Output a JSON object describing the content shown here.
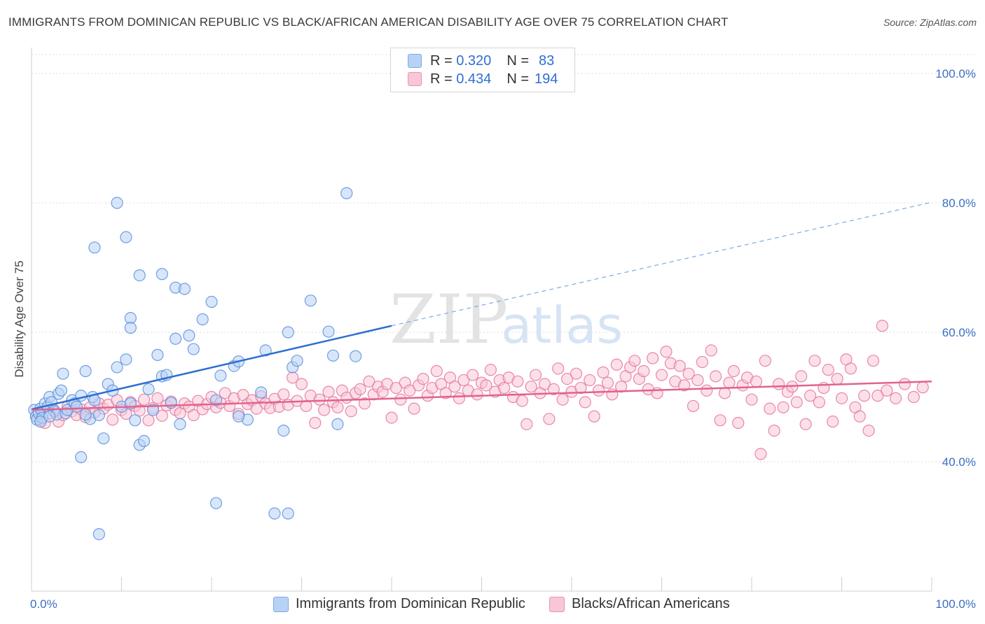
{
  "title": "IMMIGRANTS FROM DOMINICAN REPUBLIC VS BLACK/AFRICAN AMERICAN DISABILITY AGE OVER 75 CORRELATION CHART",
  "source": "Source: ZipAtlas.com",
  "watermark": {
    "zip": "ZIP",
    "atlas": "atlas"
  },
  "legend": {
    "r_label": "R =",
    "n_label": "N =",
    "rows": [
      {
        "r": "0.320",
        "n": "83",
        "color": "#7aaae8",
        "fill": "#b8d2f5"
      },
      {
        "r": "0.434",
        "n": "194",
        "color": "#ee8fb0",
        "fill": "#f8c6d6"
      }
    ]
  },
  "bottom_legend": [
    "Immigrants from Dominican Republic",
    "Blacks/African Americans"
  ],
  "chart_data": {
    "type": "scatter",
    "title": "IMMIGRANTS FROM DOMINICAN REPUBLIC VS BLACK/AFRICAN AMERICAN DISABILITY AGE OVER 75 CORRELATION CHART",
    "xlabel": "",
    "ylabel": "Disability Age Over 75",
    "xlim": [
      0,
      100
    ],
    "ylim": [
      20,
      104
    ],
    "x_tick_labels": [
      "0.0%",
      "100.0%"
    ],
    "y_ticks": [
      40,
      60,
      80,
      100
    ],
    "y_tick_labels": [
      "40.0%",
      "60.0%",
      "80.0%",
      "100.0%"
    ],
    "grid": true,
    "legend_position": "top-center",
    "series": [
      {
        "name": "Immigrants from Dominican Republic",
        "color": "#5b8fdc",
        "fill": "#b8d2f5",
        "trend": {
          "x0": 0,
          "y0": 48.1,
          "x1": 40,
          "y1": 61.0,
          "dashed_to_x": 100,
          "dashed_to_y": 80.1
        },
        "points": [
          [
            0.3,
            48.0
          ],
          [
            0.5,
            47.0
          ],
          [
            0.6,
            46.5
          ],
          [
            0.8,
            47.5
          ],
          [
            1.0,
            48.2
          ],
          [
            1.2,
            46.8
          ],
          [
            1.5,
            49.0
          ],
          [
            1.8,
            48.5
          ],
          [
            2.0,
            50.0
          ],
          [
            2.2,
            49.2
          ],
          [
            2.5,
            47.8
          ],
          [
            2.8,
            47.3
          ],
          [
            3.0,
            50.5
          ],
          [
            3.3,
            51.0
          ],
          [
            3.5,
            53.6
          ],
          [
            3.8,
            47.5
          ],
          [
            4.0,
            48.0
          ],
          [
            4.5,
            49.5
          ],
          [
            4.8,
            49.0
          ],
          [
            5.0,
            48.5
          ],
          [
            5.5,
            50.2
          ],
          [
            6.0,
            54.0
          ],
          [
            6.5,
            46.6
          ],
          [
            6.8,
            50.0
          ],
          [
            7.0,
            49.5
          ],
          [
            7.5,
            47.2
          ],
          [
            8.0,
            43.6
          ],
          [
            8.5,
            52.0
          ],
          [
            9.0,
            51.0
          ],
          [
            9.5,
            54.6
          ],
          [
            10.0,
            48.5
          ],
          [
            10.5,
            55.8
          ],
          [
            11.0,
            49.0
          ],
          [
            11.5,
            46.4
          ],
          [
            12.0,
            42.6
          ],
          [
            12.5,
            43.2
          ],
          [
            13.0,
            51.2
          ],
          [
            13.5,
            48.0
          ],
          [
            14.0,
            56.5
          ],
          [
            14.5,
            53.2
          ],
          [
            15.0,
            53.4
          ],
          [
            15.5,
            49.1
          ],
          [
            16.0,
            59.0
          ],
          [
            16.5,
            45.8
          ],
          [
            17.5,
            59.5
          ],
          [
            18.0,
            57.4
          ],
          [
            19.0,
            62.0
          ],
          [
            20.0,
            64.7
          ],
          [
            20.5,
            49.5
          ],
          [
            21.0,
            53.3
          ],
          [
            22.5,
            54.8
          ],
          [
            23.0,
            55.5
          ],
          [
            24.0,
            46.5
          ],
          [
            25.5,
            50.7
          ],
          [
            26.0,
            57.2
          ],
          [
            28.0,
            44.8
          ],
          [
            28.5,
            60.0
          ],
          [
            29.0,
            54.6
          ],
          [
            29.5,
            55.6
          ],
          [
            31.0,
            64.9
          ],
          [
            33.0,
            60.1
          ],
          [
            33.5,
            56.4
          ],
          [
            34.0,
            45.8
          ],
          [
            36.0,
            56.3
          ],
          [
            7.0,
            73.1
          ],
          [
            9.5,
            80.0
          ],
          [
            10.5,
            74.7
          ],
          [
            12.0,
            68.8
          ],
          [
            14.5,
            69.0
          ],
          [
            16.0,
            66.9
          ],
          [
            17.0,
            66.7
          ],
          [
            11.0,
            62.2
          ],
          [
            11.0,
            60.7
          ],
          [
            5.5,
            40.7
          ],
          [
            7.5,
            28.8
          ],
          [
            20.5,
            33.6
          ],
          [
            27.0,
            32.0
          ],
          [
            28.5,
            32.0
          ],
          [
            35.0,
            81.5
          ],
          [
            23.0,
            47.0
          ],
          [
            1.0,
            46.2
          ],
          [
            2.0,
            47.0
          ],
          [
            6.0,
            47.3
          ]
        ]
      },
      {
        "name": "Blacks/African Americans",
        "color": "#e6739c",
        "fill": "#f8c6d6",
        "trend": {
          "x0": 0,
          "y0": 48.0,
          "x1": 100,
          "y1": 52.4
        },
        "points": [
          [
            0.5,
            47.0
          ],
          [
            1.0,
            46.5
          ],
          [
            1.5,
            46.0
          ],
          [
            2.0,
            47.5
          ],
          [
            2.5,
            48.0
          ],
          [
            3.0,
            46.2
          ],
          [
            3.5,
            47.2
          ],
          [
            4.0,
            48.5
          ],
          [
            4.5,
            47.8
          ],
          [
            5.0,
            47.2
          ],
          [
            5.5,
            48.1
          ],
          [
            6.0,
            46.9
          ],
          [
            6.5,
            48.4
          ],
          [
            7.0,
            47.6
          ],
          [
            7.5,
            49.0
          ],
          [
            8.0,
            48.2
          ],
          [
            8.5,
            48.8
          ],
          [
            9.0,
            46.5
          ],
          [
            9.5,
            49.5
          ],
          [
            10.0,
            48.0
          ],
          [
            10.5,
            47.4
          ],
          [
            11.0,
            49.2
          ],
          [
            11.5,
            48.6
          ],
          [
            12.0,
            47.9
          ],
          [
            12.5,
            49.6
          ],
          [
            13.0,
            46.4
          ],
          [
            13.5,
            48.3
          ],
          [
            14.0,
            49.8
          ],
          [
            14.5,
            47.1
          ],
          [
            15.0,
            48.7
          ],
          [
            15.5,
            49.3
          ],
          [
            16.0,
            48.0
          ],
          [
            16.5,
            47.5
          ],
          [
            17.0,
            49.0
          ],
          [
            17.5,
            48.5
          ],
          [
            18.0,
            47.2
          ],
          [
            18.5,
            49.4
          ],
          [
            19.0,
            48.1
          ],
          [
            19.5,
            48.9
          ],
          [
            20.0,
            50.0
          ],
          [
            20.5,
            48.4
          ],
          [
            21.0,
            49.1
          ],
          [
            21.5,
            50.6
          ],
          [
            22.0,
            48.6
          ],
          [
            22.5,
            49.8
          ],
          [
            23.0,
            47.4
          ],
          [
            23.5,
            50.3
          ],
          [
            24.0,
            48.9
          ],
          [
            24.5,
            49.5
          ],
          [
            25.0,
            48.2
          ],
          [
            25.5,
            50.1
          ],
          [
            26.0,
            49.0
          ],
          [
            26.5,
            48.3
          ],
          [
            27.0,
            49.7
          ],
          [
            27.5,
            48.5
          ],
          [
            28.0,
            50.4
          ],
          [
            28.5,
            48.8
          ],
          [
            29.0,
            53.0
          ],
          [
            29.5,
            49.4
          ],
          [
            30.0,
            52.0
          ],
          [
            30.5,
            48.6
          ],
          [
            31.0,
            50.2
          ],
          [
            31.5,
            46.0
          ],
          [
            32.0,
            49.6
          ],
          [
            32.5,
            48.0
          ],
          [
            33.0,
            50.8
          ],
          [
            33.5,
            49.2
          ],
          [
            34.0,
            48.4
          ],
          [
            34.5,
            51.0
          ],
          [
            35.0,
            49.9
          ],
          [
            35.5,
            47.8
          ],
          [
            36.0,
            50.6
          ],
          [
            36.5,
            51.2
          ],
          [
            37.0,
            49.0
          ],
          [
            37.5,
            52.4
          ],
          [
            38.0,
            50.4
          ],
          [
            38.5,
            51.6
          ],
          [
            39.0,
            50.8
          ],
          [
            39.5,
            52.0
          ],
          [
            40.0,
            46.8
          ],
          [
            40.5,
            51.4
          ],
          [
            41.0,
            49.6
          ],
          [
            41.5,
            52.2
          ],
          [
            42.0,
            51.0
          ],
          [
            42.5,
            48.2
          ],
          [
            43.0,
            51.8
          ],
          [
            43.5,
            52.8
          ],
          [
            44.0,
            50.2
          ],
          [
            44.5,
            51.4
          ],
          [
            45.0,
            54.0
          ],
          [
            45.5,
            52.0
          ],
          [
            46.0,
            50.6
          ],
          [
            46.5,
            53.0
          ],
          [
            47.0,
            51.6
          ],
          [
            47.5,
            49.8
          ],
          [
            48.0,
            52.6
          ],
          [
            48.5,
            51.0
          ],
          [
            49.0,
            53.4
          ],
          [
            49.5,
            50.4
          ],
          [
            50.0,
            52.2
          ],
          [
            50.5,
            51.8
          ],
          [
            51.0,
            54.2
          ],
          [
            51.5,
            50.8
          ],
          [
            52.0,
            52.6
          ],
          [
            52.5,
            51.4
          ],
          [
            53.0,
            53.0
          ],
          [
            53.5,
            50.0
          ],
          [
            54.0,
            52.4
          ],
          [
            54.5,
            49.4
          ],
          [
            55.0,
            45.8
          ],
          [
            55.5,
            51.6
          ],
          [
            56.0,
            53.4
          ],
          [
            56.5,
            50.6
          ],
          [
            57.0,
            52.0
          ],
          [
            57.5,
            46.6
          ],
          [
            58.0,
            51.2
          ],
          [
            58.5,
            54.4
          ],
          [
            59.0,
            49.6
          ],
          [
            59.5,
            52.8
          ],
          [
            60.0,
            50.8
          ],
          [
            60.5,
            53.6
          ],
          [
            61.0,
            51.4
          ],
          [
            61.5,
            49.2
          ],
          [
            62.0,
            52.6
          ],
          [
            62.5,
            47.0
          ],
          [
            63.0,
            51.0
          ],
          [
            63.5,
            53.8
          ],
          [
            64.0,
            52.2
          ],
          [
            64.5,
            50.4
          ],
          [
            65.0,
            55.0
          ],
          [
            65.5,
            51.6
          ],
          [
            66.0,
            53.2
          ],
          [
            66.5,
            54.6
          ],
          [
            67.0,
            55.6
          ],
          [
            67.5,
            52.8
          ],
          [
            68.0,
            54.0
          ],
          [
            68.5,
            51.2
          ],
          [
            69.0,
            56.0
          ],
          [
            69.5,
            50.6
          ],
          [
            70.0,
            53.4
          ],
          [
            70.5,
            57.0
          ],
          [
            71.0,
            55.2
          ],
          [
            71.5,
            52.4
          ],
          [
            72.0,
            54.8
          ],
          [
            72.5,
            51.8
          ],
          [
            73.0,
            53.6
          ],
          [
            73.5,
            48.6
          ],
          [
            74.0,
            52.6
          ],
          [
            74.5,
            55.4
          ],
          [
            75.0,
            51.0
          ],
          [
            75.5,
            57.2
          ],
          [
            76.0,
            53.2
          ],
          [
            76.5,
            46.4
          ],
          [
            77.0,
            50.6
          ],
          [
            77.5,
            52.2
          ],
          [
            78.0,
            54.0
          ],
          [
            78.5,
            46.0
          ],
          [
            79.0,
            51.8
          ],
          [
            79.5,
            53.0
          ],
          [
            80.0,
            49.6
          ],
          [
            80.5,
            52.4
          ],
          [
            81.0,
            41.2
          ],
          [
            81.5,
            55.6
          ],
          [
            82.0,
            48.2
          ],
          [
            82.5,
            44.8
          ],
          [
            83.0,
            52.0
          ],
          [
            83.5,
            48.4
          ],
          [
            84.0,
            50.8
          ],
          [
            84.5,
            51.6
          ],
          [
            85.0,
            49.2
          ],
          [
            85.5,
            53.2
          ],
          [
            86.0,
            45.8
          ],
          [
            86.5,
            50.2
          ],
          [
            87.0,
            55.6
          ],
          [
            87.5,
            49.2
          ],
          [
            88.0,
            51.4
          ],
          [
            88.5,
            54.2
          ],
          [
            89.0,
            46.2
          ],
          [
            89.5,
            52.8
          ],
          [
            90.0,
            49.8
          ],
          [
            90.5,
            55.8
          ],
          [
            91.0,
            54.4
          ],
          [
            91.5,
            48.4
          ],
          [
            92.0,
            47.0
          ],
          [
            92.5,
            50.2
          ],
          [
            93.0,
            44.8
          ],
          [
            93.5,
            55.6
          ],
          [
            94.0,
            50.2
          ],
          [
            94.5,
            61.0
          ],
          [
            95.0,
            51.0
          ],
          [
            96.0,
            49.8
          ],
          [
            97.0,
            52.0
          ],
          [
            98.0,
            50.0
          ],
          [
            99.0,
            51.5
          ]
        ]
      }
    ]
  }
}
